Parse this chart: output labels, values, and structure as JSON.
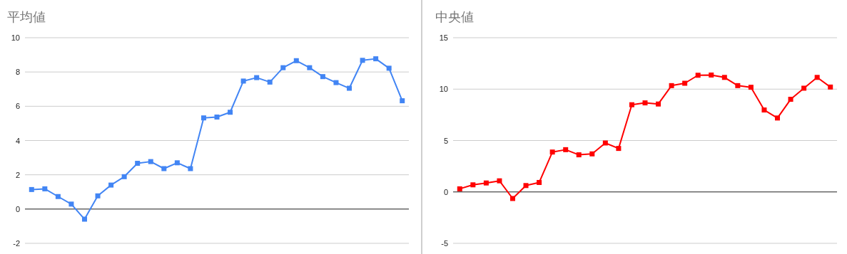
{
  "chart_data": [
    {
      "type": "line",
      "title": "平均値",
      "categories": [
        null,
        null,
        null,
        null,
        null,
        null,
        null,
        null,
        null,
        null,
        null,
        null,
        null,
        null,
        null,
        null,
        null,
        null,
        null,
        null,
        null,
        null,
        null,
        null,
        null,
        null,
        null,
        null,
        null
      ],
      "values": [
        1.14,
        1.18,
        0.73,
        0.29,
        -0.59,
        0.77,
        1.4,
        1.89,
        2.67,
        2.77,
        2.36,
        2.7,
        2.36,
        5.32,
        5.37,
        5.65,
        7.47,
        7.67,
        7.41,
        8.25,
        8.66,
        8.25,
        7.73,
        7.38,
        7.05,
        8.68,
        8.77,
        8.22,
        6.32
      ],
      "color": "#4285f4",
      "ylim": [
        -2,
        10
      ],
      "yticks": [
        -2,
        0,
        2,
        4,
        6,
        8,
        10
      ],
      "grid": "y",
      "marker": "square"
    },
    {
      "type": "line",
      "title": "中央値",
      "categories": [
        null,
        null,
        null,
        null,
        null,
        null,
        null,
        null,
        null,
        null,
        null,
        null,
        null,
        null,
        null,
        null,
        null,
        null,
        null,
        null,
        null,
        null,
        null,
        null,
        null,
        null,
        null,
        null,
        null
      ],
      "values": [
        0.3,
        0.69,
        0.87,
        1.08,
        -0.64,
        0.62,
        0.92,
        3.88,
        4.11,
        3.61,
        3.7,
        4.76,
        4.23,
        8.48,
        8.66,
        8.55,
        10.34,
        10.57,
        11.35,
        11.37,
        11.14,
        10.34,
        10.18,
        7.97,
        7.19,
        9.01,
        10.09,
        11.14,
        10.2
      ],
      "color": "#ff0000",
      "ylim": [
        -5,
        15
      ],
      "yticks": [
        -5,
        0,
        5,
        10,
        15
      ],
      "grid": "y",
      "marker": "square"
    }
  ]
}
